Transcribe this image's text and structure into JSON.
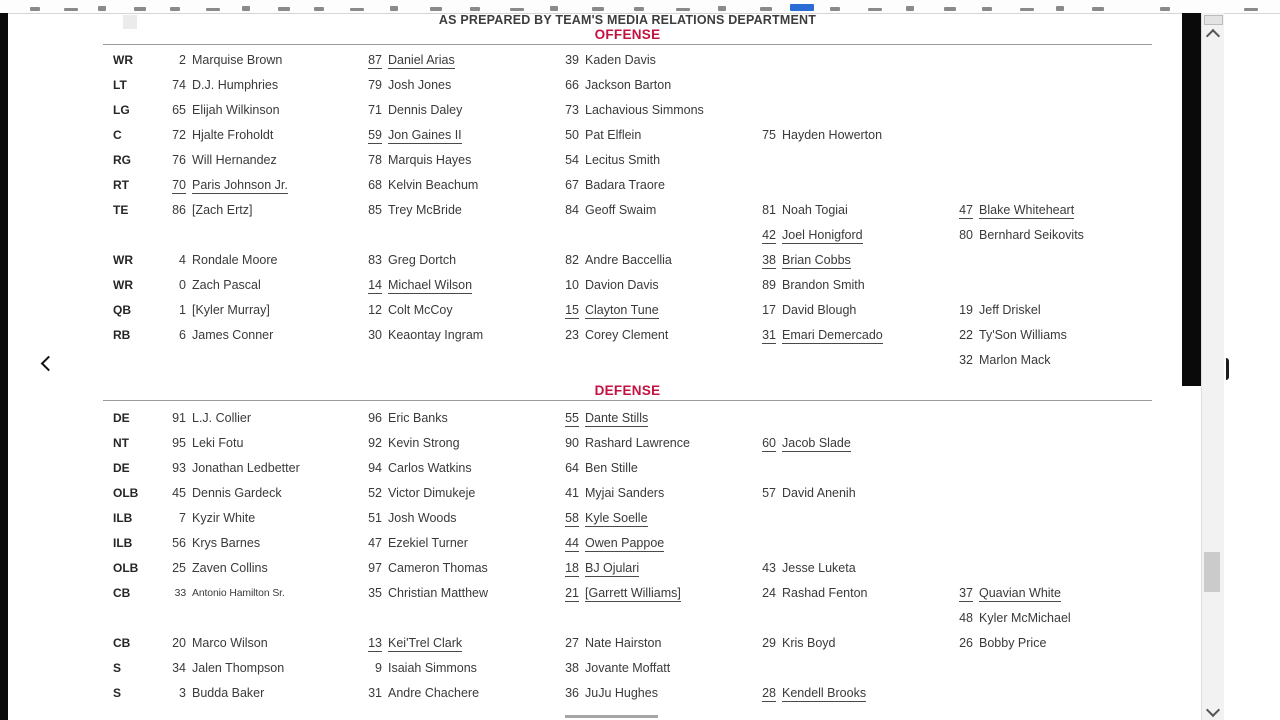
{
  "colors": {
    "accent_red": "#c41240",
    "text": "#3a3a3a"
  },
  "header": {
    "prepared_line": "AS PREPARED BY TEAM'S MEDIA RELATIONS DEPARTMENT"
  },
  "icons": {
    "scroll_up": "chevron-up",
    "scroll_down": "chevron-down",
    "page_cursor": "chevron-left"
  },
  "sections": [
    {
      "title": "OFFENSE",
      "rows": [
        {
          "pos": "WR",
          "entries": [
            {
              "col": 0,
              "num": "2",
              "name": "Marquise Brown"
            },
            {
              "col": 1,
              "num": "87",
              "name": "Daniel Arias",
              "underline": true
            },
            {
              "col": 2,
              "num": "39",
              "name": "Kaden Davis"
            }
          ]
        },
        {
          "pos": "LT",
          "entries": [
            {
              "col": 0,
              "num": "74",
              "name": "D.J. Humphries"
            },
            {
              "col": 1,
              "num": "79",
              "name": "Josh Jones"
            },
            {
              "col": 2,
              "num": "66",
              "name": "Jackson Barton"
            }
          ]
        },
        {
          "pos": "LG",
          "entries": [
            {
              "col": 0,
              "num": "65",
              "name": "Elijah Wilkinson"
            },
            {
              "col": 1,
              "num": "71",
              "name": "Dennis Daley"
            },
            {
              "col": 2,
              "num": "73",
              "name": "Lachavious Simmons"
            }
          ]
        },
        {
          "pos": "C",
          "entries": [
            {
              "col": 0,
              "num": "72",
              "name": "Hjalte Froholdt"
            },
            {
              "col": 1,
              "num": "59",
              "name": "Jon Gaines II",
              "underline": true
            },
            {
              "col": 2,
              "num": "50",
              "name": "Pat Elflein"
            },
            {
              "col": 3,
              "num": "75",
              "name": "Hayden Howerton"
            }
          ]
        },
        {
          "pos": "RG",
          "entries": [
            {
              "col": 0,
              "num": "76",
              "name": "Will Hernandez"
            },
            {
              "col": 1,
              "num": "78",
              "name": "Marquis Hayes"
            },
            {
              "col": 2,
              "num": "54",
              "name": "Lecitus Smith"
            }
          ]
        },
        {
          "pos": "RT",
          "entries": [
            {
              "col": 0,
              "num": "70",
              "name": "Paris Johnson Jr.",
              "underline": true
            },
            {
              "col": 1,
              "num": "68",
              "name": "Kelvin Beachum"
            },
            {
              "col": 2,
              "num": "67",
              "name": "Badara Traore"
            }
          ]
        },
        {
          "pos": "TE",
          "entries": [
            {
              "col": 0,
              "num": "86",
              "name": "[Zach Ertz]"
            },
            {
              "col": 1,
              "num": "85",
              "name": "Trey McBride"
            },
            {
              "col": 2,
              "num": "84",
              "name": "Geoff Swaim"
            },
            {
              "col": 3,
              "num": "81",
              "name": "Noah Togiai"
            },
            {
              "col": 4,
              "num": "47",
              "name": "Blake Whiteheart",
              "underline": true
            }
          ]
        },
        {
          "pos": "",
          "entries": [
            {
              "col": 3,
              "num": "42",
              "name": "Joel Honigford",
              "underline": true
            },
            {
              "col": 4,
              "num": "80",
              "name": "Bernhard Seikovits"
            }
          ]
        },
        {
          "pos": "WR",
          "entries": [
            {
              "col": 0,
              "num": "4",
              "name": "Rondale Moore"
            },
            {
              "col": 1,
              "num": "83",
              "name": "Greg Dortch"
            },
            {
              "col": 2,
              "num": "82",
              "name": "Andre Baccellia"
            },
            {
              "col": 3,
              "num": "38",
              "name": "Brian Cobbs",
              "underline": true
            }
          ]
        },
        {
          "pos": "WR",
          "entries": [
            {
              "col": 0,
              "num": "0",
              "name": "Zach Pascal"
            },
            {
              "col": 1,
              "num": "14",
              "name": "Michael Wilson",
              "underline": true
            },
            {
              "col": 2,
              "num": "10",
              "name": "Davion Davis"
            },
            {
              "col": 3,
              "num": "89",
              "name": "Brandon Smith"
            }
          ]
        },
        {
          "pos": "QB",
          "entries": [
            {
              "col": 0,
              "num": "1",
              "name": "[Kyler Murray]"
            },
            {
              "col": 1,
              "num": "12",
              "name": "Colt McCoy"
            },
            {
              "col": 2,
              "num": "15",
              "name": "Clayton Tune",
              "underline": true
            },
            {
              "col": 3,
              "num": "17",
              "name": "David Blough"
            },
            {
              "col": 4,
              "num": "19",
              "name": "Jeff Driskel"
            }
          ]
        },
        {
          "pos": "RB",
          "entries": [
            {
              "col": 0,
              "num": "6",
              "name": "James Conner"
            },
            {
              "col": 1,
              "num": "30",
              "name": "Keaontay Ingram"
            },
            {
              "col": 2,
              "num": "23",
              "name": "Corey Clement"
            },
            {
              "col": 3,
              "num": "31",
              "name": "Emari Demercado",
              "underline": true
            },
            {
              "col": 4,
              "num": "22",
              "name": "Ty'Son Williams"
            }
          ]
        },
        {
          "pos": "",
          "entries": [
            {
              "col": 4,
              "num": "32",
              "name": "Marlon Mack"
            }
          ]
        }
      ]
    },
    {
      "title": "DEFENSE",
      "rows": [
        {
          "pos": "DE",
          "entries": [
            {
              "col": 0,
              "num": "91",
              "name": "L.J. Collier"
            },
            {
              "col": 1,
              "num": "96",
              "name": "Eric Banks"
            },
            {
              "col": 2,
              "num": "55",
              "name": "Dante Stills",
              "underline": true
            }
          ]
        },
        {
          "pos": "NT",
          "entries": [
            {
              "col": 0,
              "num": "95",
              "name": "Leki Fotu"
            },
            {
              "col": 1,
              "num": "92",
              "name": "Kevin Strong"
            },
            {
              "col": 2,
              "num": "90",
              "name": "Rashard Lawrence"
            },
            {
              "col": 3,
              "num": "60",
              "name": "Jacob Slade",
              "underline": true
            }
          ]
        },
        {
          "pos": "DE",
          "entries": [
            {
              "col": 0,
              "num": "93",
              "name": "Jonathan Ledbetter"
            },
            {
              "col": 1,
              "num": "94",
              "name": "Carlos Watkins"
            },
            {
              "col": 2,
              "num": "64",
              "name": "Ben Stille"
            }
          ]
        },
        {
          "pos": "OLB",
          "entries": [
            {
              "col": 0,
              "num": "45",
              "name": "Dennis Gardeck"
            },
            {
              "col": 1,
              "num": "52",
              "name": "Victor Dimukeje"
            },
            {
              "col": 2,
              "num": "41",
              "name": "Myjai Sanders"
            },
            {
              "col": 3,
              "num": "57",
              "name": "David Anenih"
            }
          ]
        },
        {
          "pos": "ILB",
          "entries": [
            {
              "col": 0,
              "num": "7",
              "name": "Kyzir White"
            },
            {
              "col": 1,
              "num": "51",
              "name": "Josh Woods"
            },
            {
              "col": 2,
              "num": "58",
              "name": "Kyle Soelle",
              "underline": true
            }
          ]
        },
        {
          "pos": "ILB",
          "entries": [
            {
              "col": 0,
              "num": "56",
              "name": "Krys Barnes"
            },
            {
              "col": 1,
              "num": "47",
              "name": "Ezekiel Turner"
            },
            {
              "col": 2,
              "num": "44",
              "name": "Owen Pappoe",
              "underline": true
            }
          ]
        },
        {
          "pos": "OLB",
          "entries": [
            {
              "col": 0,
              "num": "25",
              "name": "Zaven Collins"
            },
            {
              "col": 1,
              "num": "97",
              "name": "Cameron Thomas"
            },
            {
              "col": 2,
              "num": "18",
              "name": "BJ Ojulari",
              "underline": true
            },
            {
              "col": 3,
              "num": "43",
              "name": "Jesse Luketa"
            }
          ]
        },
        {
          "pos": "CB",
          "entries": [
            {
              "col": 0,
              "num": "33",
              "name": "Antonio Hamilton Sr.",
              "small": true
            },
            {
              "col": 1,
              "num": "35",
              "name": "Christian Matthew"
            },
            {
              "col": 2,
              "num": "21",
              "name": "[Garrett Williams]",
              "underline": true
            },
            {
              "col": 3,
              "num": "24",
              "name": "Rashad Fenton"
            },
            {
              "col": 4,
              "num": "37",
              "name": "Quavian White",
              "underline": true
            }
          ]
        },
        {
          "pos": "",
          "entries": [
            {
              "col": 4,
              "num": "48",
              "name": "Kyler McMichael"
            }
          ]
        },
        {
          "pos": "CB",
          "entries": [
            {
              "col": 0,
              "num": "20",
              "name": "Marco Wilson"
            },
            {
              "col": 1,
              "num": "13",
              "name": "Kei'Trel Clark",
              "underline": true
            },
            {
              "col": 2,
              "num": "27",
              "name": "Nate Hairston"
            },
            {
              "col": 3,
              "num": "29",
              "name": "Kris Boyd"
            },
            {
              "col": 4,
              "num": "26",
              "name": "Bobby Price"
            }
          ]
        },
        {
          "pos": "S",
          "entries": [
            {
              "col": 0,
              "num": "34",
              "name": "Jalen Thompson"
            },
            {
              "col": 1,
              "num": "9",
              "name": "Isaiah Simmons"
            },
            {
              "col": 2,
              "num": "38",
              "name": "Jovante Moffatt"
            }
          ]
        },
        {
          "pos": "S",
          "entries": [
            {
              "col": 0,
              "num": "3",
              "name": "Budda Baker"
            },
            {
              "col": 1,
              "num": "31",
              "name": "Andre Chachere"
            },
            {
              "col": 2,
              "num": "36",
              "name": "JuJu Hughes"
            },
            {
              "col": 3,
              "num": "28",
              "name": "Kendell Brooks",
              "underline": true
            }
          ]
        }
      ]
    }
  ]
}
